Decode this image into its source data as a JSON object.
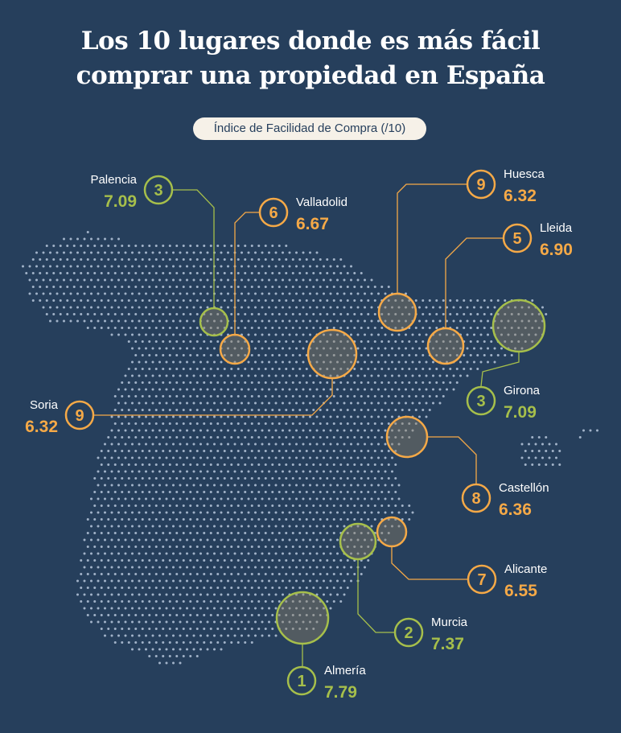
{
  "title": {
    "line1": "Los 10 lugares donde es más fácil",
    "line2": "comprar una propiedad en España"
  },
  "legend_label": "Índice de Facilidad de Compra (/10)",
  "colors": {
    "background": "#263f5c",
    "top3": "#a6bf4b",
    "others": "#f5a947",
    "dots": "#b9c8dc"
  },
  "places": [
    {
      "rank": "1",
      "name": "Almería",
      "value": "7.79",
      "tier": "top3"
    },
    {
      "rank": "2",
      "name": "Murcia",
      "value": "7.37",
      "tier": "top3"
    },
    {
      "rank": "3",
      "name": "Palencia",
      "value": "7.09",
      "tier": "top3"
    },
    {
      "rank": "3",
      "name": "Girona",
      "value": "7.09",
      "tier": "top3"
    },
    {
      "rank": "5",
      "name": "Lleida",
      "value": "6.90",
      "tier": "others"
    },
    {
      "rank": "6",
      "name": "Valladolid",
      "value": "6.67",
      "tier": "others"
    },
    {
      "rank": "7",
      "name": "Alicante",
      "value": "6.55",
      "tier": "others"
    },
    {
      "rank": "8",
      "name": "Castellón",
      "value": "6.36",
      "tier": "others"
    },
    {
      "rank": "9",
      "name": "Huesca",
      "value": "6.32",
      "tier": "others"
    },
    {
      "rank": "9",
      "name": "Soria",
      "value": "6.32",
      "tier": "others"
    }
  ]
}
